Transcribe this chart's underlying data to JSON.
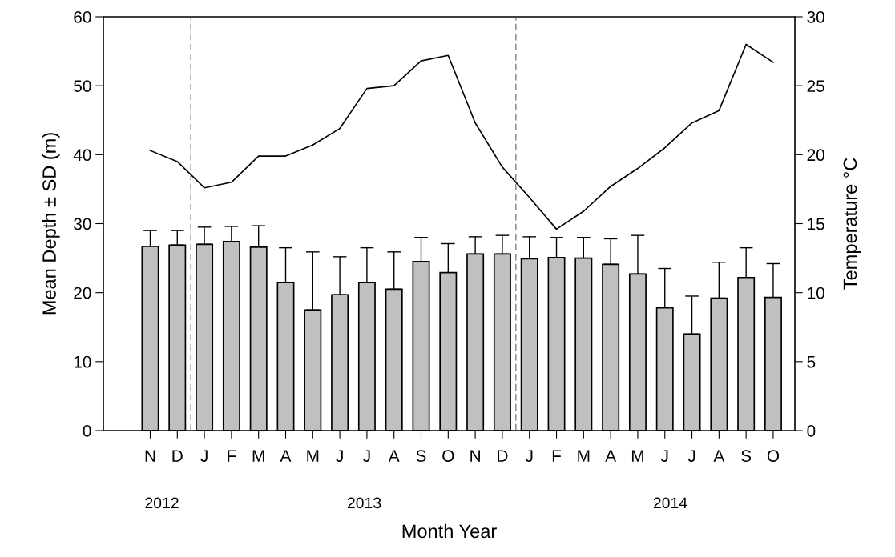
{
  "chart_data": {
    "type": "bar",
    "xlabel": "Month Year",
    "ylabel": "Mean Depth ± SD (m)",
    "y2label": "Temperature °C",
    "categories": [
      "N",
      "D",
      "J",
      "F",
      "M",
      "A",
      "M",
      "J",
      "J",
      "A",
      "S",
      "O",
      "N",
      "D",
      "J",
      "F",
      "M",
      "A",
      "M",
      "J",
      "J",
      "A",
      "S",
      "O"
    ],
    "series": [
      {
        "color": "#c0c0c0",
        "values": [
          26.7,
          26.9,
          27.0,
          27.4,
          26.6,
          21.5,
          17.5,
          19.7,
          21.5,
          20.5,
          24.5,
          22.9,
          25.6,
          25.6,
          24.9,
          25.1,
          25.0,
          24.1,
          22.7,
          17.8,
          14.0,
          19.2,
          22.2,
          19.3
        ],
        "errors": [
          [
            26.7,
            29.0
          ],
          [
            26.9,
            29.0
          ],
          [
            27.0,
            29.5
          ],
          [
            27.4,
            29.6
          ],
          [
            26.6,
            29.7
          ],
          [
            21.5,
            26.5
          ],
          [
            17.5,
            25.9
          ],
          [
            19.7,
            25.2
          ],
          [
            21.5,
            26.5
          ],
          [
            20.5,
            25.9
          ],
          [
            24.5,
            28.0
          ],
          [
            22.9,
            27.1
          ],
          [
            25.6,
            28.1
          ],
          [
            25.6,
            28.3
          ],
          [
            24.9,
            28.1
          ],
          [
            25.1,
            28.0
          ],
          [
            25.0,
            28.0
          ],
          [
            24.1,
            27.8
          ],
          [
            22.7,
            28.3
          ],
          [
            17.8,
            23.5
          ],
          [
            14.0,
            19.5
          ],
          [
            19.2,
            24.4
          ],
          [
            22.2,
            26.5
          ],
          [
            19.3,
            24.2
          ]
        ]
      },
      {
        "type": "line",
        "axis": "y2",
        "color": "#000000",
        "values": [
          20.3,
          19.5,
          17.6,
          18.0,
          19.9,
          19.9,
          20.7,
          21.9,
          24.8,
          25.0,
          26.8,
          27.2,
          22.3,
          19.1,
          16.9,
          14.6,
          15.9,
          17.7,
          19.0,
          20.5,
          22.3,
          23.2,
          28.0,
          26.7
        ]
      }
    ],
    "ylim": [
      0,
      60
    ],
    "yticks": [
      0,
      10,
      20,
      30,
      40,
      50,
      60
    ],
    "y2lim": [
      0,
      30
    ],
    "y2ticks": [
      0,
      5,
      10,
      15,
      20,
      25,
      30
    ],
    "annotations": [
      "2012",
      "2013",
      "2014"
    ],
    "grid": false,
    "legend": false
  }
}
